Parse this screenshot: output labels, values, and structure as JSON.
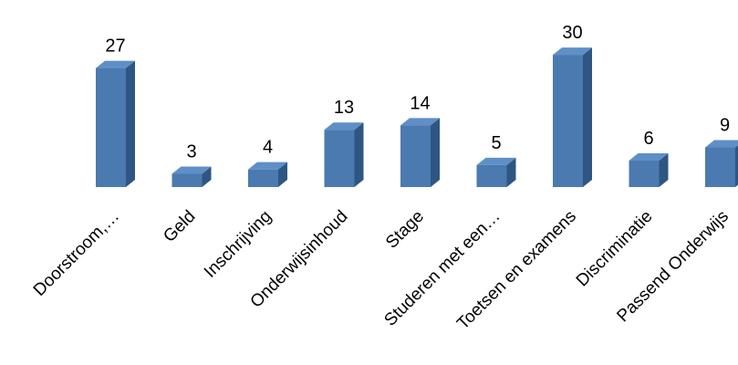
{
  "colors": {
    "bar_front": "#4a7ab0",
    "bar_side": "#2f5682",
    "bar_top": "#5f8fc6",
    "text": "#000000"
  },
  "chart_data": {
    "type": "bar",
    "style": "3d-column",
    "categories": [
      "Doorstroom,…",
      "Geld",
      "Inschrijving",
      "Onderwijsinhoud",
      "Stage",
      "Studeren met een…",
      "Toetsen en examens",
      "Discriminatie",
      "Passend Onderwijs"
    ],
    "values": [
      27,
      3,
      4,
      13,
      14,
      5,
      30,
      6,
      9
    ],
    "data_labels": [
      "27",
      "3",
      "4",
      "13",
      "14",
      "5",
      "30",
      "6",
      "9"
    ],
    "ylim": [
      0,
      30
    ],
    "grid": false,
    "legend": "none"
  }
}
